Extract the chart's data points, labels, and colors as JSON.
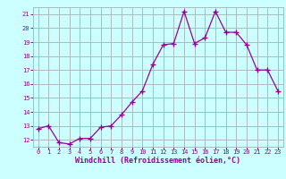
{
  "x": [
    0,
    1,
    2,
    3,
    4,
    5,
    6,
    7,
    8,
    9,
    10,
    11,
    12,
    13,
    14,
    15,
    16,
    17,
    18,
    19,
    20,
    21,
    22,
    23
  ],
  "y": [
    12.8,
    13.0,
    11.8,
    11.7,
    12.1,
    12.1,
    12.9,
    13.0,
    13.8,
    14.7,
    15.5,
    17.4,
    18.8,
    18.9,
    21.2,
    18.9,
    19.3,
    21.2,
    19.7,
    19.7,
    18.8,
    17.0,
    17.0,
    15.5
  ],
  "line_color": "#990099",
  "marker": "+",
  "marker_size": 4,
  "bg_color": "#ccffff",
  "grid_color": "#aabbbb",
  "xlabel": "Windchill (Refroidissement éolien,°C)",
  "xlabel_color": "#990099",
  "tick_color": "#990099",
  "ylim": [
    11.5,
    21.5
  ],
  "xlim": [
    -0.5,
    23.5
  ],
  "yticks": [
    12,
    13,
    14,
    15,
    16,
    17,
    18,
    19,
    20,
    21
  ],
  "xticks": [
    0,
    1,
    2,
    3,
    4,
    5,
    6,
    7,
    8,
    9,
    10,
    11,
    12,
    13,
    14,
    15,
    16,
    17,
    18,
    19,
    20,
    21,
    22,
    23
  ],
  "xtick_labels": [
    "0",
    "1",
    "2",
    "3",
    "4",
    "5",
    "6",
    "7",
    "8",
    "9",
    "10",
    "11",
    "12",
    "13",
    "14",
    "15",
    "16",
    "17",
    "18",
    "19",
    "20",
    "21",
    "22",
    "23"
  ],
  "tick_fontsize": 5,
  "xlabel_fontsize": 6,
  "linewidth": 0.9
}
